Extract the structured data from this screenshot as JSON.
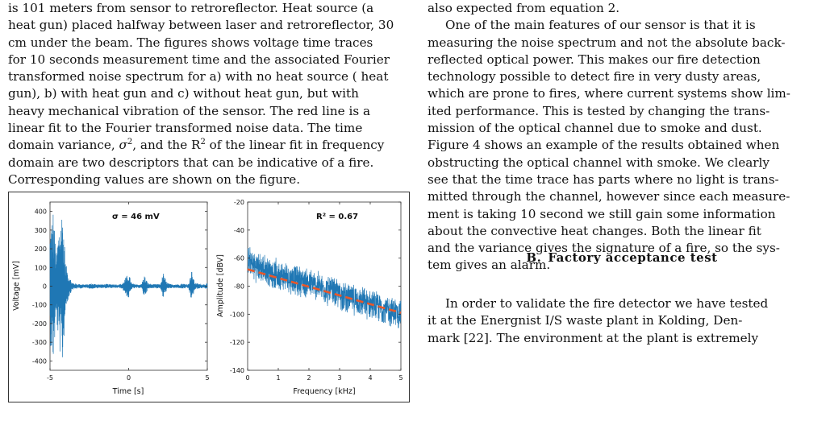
{
  "left_column": {
    "caption_lines": [
      "is 101 meters from sensor to retroreflector. Heat source (a",
      "heat gun) placed halfway between laser and retroreflector, 30",
      "cm under the beam. The figures shows voltage time traces",
      "for 10 seconds measurement time and the associated Fourier",
      "transformed noise spectrum for a) with no heat source ( heat",
      "gun), b) with heat gun and c) without heat gun, but with",
      "heavy mechanical vibration of the sensor. The red line is a",
      "linear fit to the Fourier transformed noise data. The time"
    ],
    "caption_variance_line": {
      "before": "domain variance, ",
      "symbol": "σ",
      "sup": "2",
      "middle": ", and the R",
      "sup2": "2",
      "after": " of the linear fit in frequency"
    },
    "caption_tail_lines": [
      "domain are two descriptors that can be indicative of a fire.",
      "Corresponding values are shown on the figure."
    ]
  },
  "right_column": {
    "top_line": "also expected from equation 2.",
    "paragraph_lines": [
      "One of the main features of our sensor is that it is",
      "measuring the noise spectrum and not the absolute back-",
      "reflected optical power. This makes our fire detection",
      "technology possible to detect fire in very dusty areas,",
      "which are prone to fires, where current systems show lim-",
      "ited performance. This is tested by changing the trans-",
      "mission of the optical channel due to smoke and dust.",
      "Figure 4 shows an example of the results obtained when",
      "obstructing the optical channel with smoke. We clearly",
      "see that the time trace has parts where no light is trans-",
      "mitted through the channel, however since each measure-",
      "ment is taking 10 second we still gain some information",
      "about the convective heat changes. Both the linear fit",
      "and the variance gives the signature of a fire, so the sys-",
      "tem gives an alarm."
    ],
    "section": {
      "number": "B.",
      "title": "Factory acceptance test"
    },
    "bottom_lines": [
      "In order to validate the fire detector we have tested",
      "it at the Energnist I/S waste plant in Kolding, Den-",
      "mark [22]. The environment at the plant is extremely"
    ]
  },
  "chart_data": [
    {
      "type": "line",
      "title": "",
      "annotation": "σ = 46 mV",
      "xlabel": "Time [s]",
      "ylabel": "Voltage [mV]",
      "xlim": [
        -5,
        5
      ],
      "ylim": [
        -450,
        450
      ],
      "x_ticks": [
        -5,
        0,
        5
      ],
      "y_ticks": [
        -400,
        -300,
        -200,
        -100,
        0,
        100,
        200,
        300,
        400
      ],
      "grid": false,
      "series": [
        {
          "color": "#1f77b4",
          "envelope": {
            "x": [
              -5,
              -4.8,
              -4.6,
              -4.4,
              -4.2,
              -4.0,
              -3.8,
              -3.6,
              -3.4,
              -3.2,
              -3.0,
              -2.8,
              -2.6,
              -2.4,
              -2.2,
              -2.0,
              -1.8,
              -1.6,
              -1.4,
              -1.2,
              -1.0,
              -0.8,
              -0.6,
              -0.4,
              -0.2,
              0,
              0.2,
              0.4,
              0.6,
              0.8,
              1.0,
              1.2,
              1.4,
              1.6,
              1.8,
              2.0,
              2.2,
              2.4,
              2.6,
              2.8,
              3.0,
              3.2,
              3.4,
              3.6,
              3.8,
              4.0,
              4.2,
              4.4,
              4.6,
              4.8,
              5.0
            ],
            "amplitude": [
              300,
              420,
              180,
              350,
              430,
              120,
              60,
              20,
              15,
              12,
              12,
              10,
              10,
              15,
              12,
              12,
              10,
              10,
              12,
              10,
              12,
              10,
              10,
              15,
              45,
              70,
              15,
              12,
              10,
              10,
              60,
              20,
              12,
              10,
              12,
              10,
              70,
              25,
              12,
              10,
              12,
              10,
              15,
              12,
              12,
              85,
              20,
              15,
              12,
              12,
              15
            ]
          }
        }
      ]
    },
    {
      "type": "line",
      "title": "",
      "annotation": "R² = 0.67",
      "xlabel": "Frequency [kHz]",
      "ylabel": "Amplitude [dBV]",
      "xlim": [
        0,
        5
      ],
      "ylim": [
        -140,
        -20
      ],
      "x_ticks": [
        0,
        1,
        2,
        3,
        4,
        5
      ],
      "y_ticks": [
        -140,
        -120,
        -100,
        -80,
        -60,
        -40,
        -20
      ],
      "grid": false,
      "series": [
        {
          "name": "",
          "color": "#1f77b4",
          "mean": {
            "x": [
              0,
              0.25,
              0.5,
              0.75,
              1.0,
              1.5,
              2.0,
              2.5,
              3.0,
              3.5,
              4.0,
              4.5,
              5.0
            ],
            "y": [
              -62,
              -66,
              -68,
              -70,
              -72,
              -75,
              -78,
              -82,
              -86,
              -90,
              -93,
              -97,
              -100
            ]
          },
          "spread_db": 12
        },
        {
          "name": "",
          "color": "#e8572a",
          "style": "dashed",
          "x": [
            0,
            5
          ],
          "y": [
            -68,
            -99
          ]
        }
      ]
    }
  ]
}
